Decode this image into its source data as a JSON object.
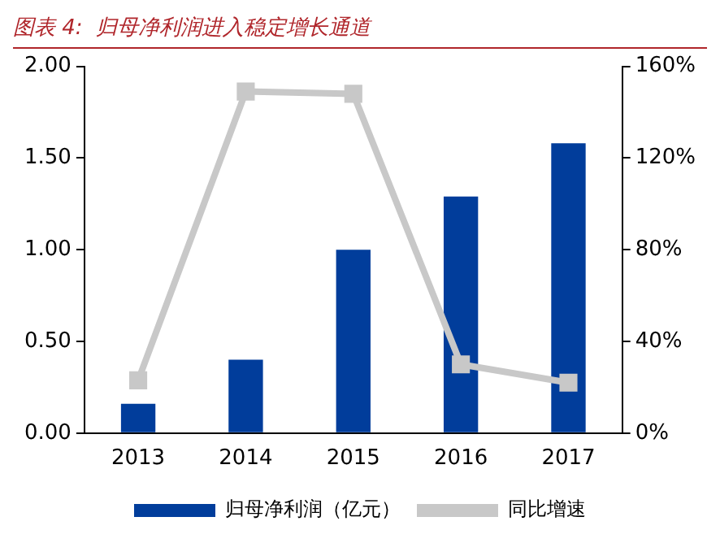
{
  "chart_data": {
    "type": "bar",
    "title": "图表 4:  归母净利润进入稳定增长通道",
    "categories": [
      "2013",
      "2014",
      "2015",
      "2016",
      "2017"
    ],
    "series": [
      {
        "name": "归母净利润（亿元）",
        "color": "#013d9b",
        "values": [
          0.16,
          0.4,
          1.0,
          1.29,
          1.58
        ]
      },
      {
        "name": "同比增速",
        "type": "line",
        "axis": "y2",
        "color": "#c8c8c8",
        "values": [
          23,
          149,
          148,
          30,
          22
        ]
      }
    ],
    "ylim": [
      0,
      2
    ],
    "yticks": [
      {
        "value": 0,
        "label": "0.00"
      },
      {
        "value": 0.5,
        "label": "0.50"
      },
      {
        "value": 1,
        "label": "1.00"
      },
      {
        "value": 1.5,
        "label": "1.50"
      },
      {
        "value": 2,
        "label": "2.00"
      }
    ],
    "y2lim": [
      0,
      160
    ],
    "y2ticks": [
      {
        "value": 0,
        "label": "0%"
      },
      {
        "value": 40,
        "label": "40%"
      },
      {
        "value": 80,
        "label": "80%"
      },
      {
        "value": 120,
        "label": "120%"
      },
      {
        "value": 160,
        "label": "160%"
      }
    ],
    "grid": false,
    "legend": "bottom",
    "marker": "square"
  }
}
